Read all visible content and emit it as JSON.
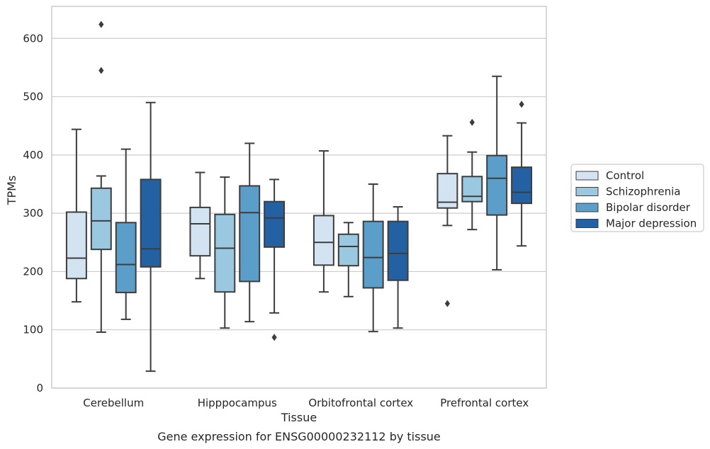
{
  "chart_data": {
    "type": "box",
    "xlabel": "Tissue",
    "ylabel": "TPMs",
    "caption": "Gene expression for ENSG00000232112 by tissue",
    "ylim": [
      0,
      655
    ],
    "yticks": [
      0,
      100,
      200,
      300,
      400,
      500,
      600
    ],
    "grid": "horizontal",
    "legend_position": "right",
    "categories": [
      "Cerebellum",
      "Hipppocampus",
      "Orbitofrontal cortex",
      "Prefrontal cortex"
    ],
    "series": [
      {
        "name": "Control",
        "color": "#d3e3f2",
        "boxes": [
          {
            "whislo": 148,
            "q1": 188,
            "med": 223,
            "q3": 302,
            "whishi": 444,
            "fliers": []
          },
          {
            "whislo": 188,
            "q1": 227,
            "med": 282,
            "q3": 310,
            "whishi": 370,
            "fliers": []
          },
          {
            "whislo": 165,
            "q1": 211,
            "med": 250,
            "q3": 296,
            "whishi": 407,
            "fliers": []
          },
          {
            "whislo": 279,
            "q1": 309,
            "med": 319,
            "q3": 368,
            "whishi": 433,
            "fliers": [
              145
            ]
          }
        ]
      },
      {
        "name": "Schizophrenia",
        "color": "#9ac8e0",
        "boxes": [
          {
            "whislo": 96,
            "q1": 238,
            "med": 287,
            "q3": 343,
            "whishi": 364,
            "fliers": [
              545,
              624
            ]
          },
          {
            "whislo": 103,
            "q1": 165,
            "med": 240,
            "q3": 298,
            "whishi": 362,
            "fliers": []
          },
          {
            "whislo": 157,
            "q1": 210,
            "med": 243,
            "q3": 264,
            "whishi": 284,
            "fliers": []
          },
          {
            "whislo": 272,
            "q1": 320,
            "med": 329,
            "q3": 363,
            "whishi": 405,
            "fliers": [
              456
            ]
          }
        ]
      },
      {
        "name": "Bipolar disorder",
        "color": "#5a9ec9",
        "boxes": [
          {
            "whislo": 118,
            "q1": 164,
            "med": 212,
            "q3": 284,
            "whishi": 410,
            "fliers": []
          },
          {
            "whislo": 114,
            "q1": 183,
            "med": 301,
            "q3": 347,
            "whishi": 420,
            "fliers": []
          },
          {
            "whislo": 97,
            "q1": 172,
            "med": 224,
            "q3": 286,
            "whishi": 350,
            "fliers": []
          },
          {
            "whislo": 203,
            "q1": 297,
            "med": 360,
            "q3": 399,
            "whishi": 535,
            "fliers": []
          }
        ]
      },
      {
        "name": "Major depression",
        "color": "#2461a2",
        "boxes": [
          {
            "whislo": 29,
            "q1": 208,
            "med": 239,
            "q3": 358,
            "whishi": 490,
            "fliers": []
          },
          {
            "whislo": 129,
            "q1": 242,
            "med": 292,
            "q3": 320,
            "whishi": 358,
            "fliers": [
              87
            ]
          },
          {
            "whislo": 103,
            "q1": 185,
            "med": 231,
            "q3": 286,
            "whishi": 311,
            "fliers": []
          },
          {
            "whislo": 244,
            "q1": 317,
            "med": 336,
            "q3": 379,
            "whishi": 455,
            "fliers": [
              487
            ]
          }
        ]
      }
    ]
  }
}
